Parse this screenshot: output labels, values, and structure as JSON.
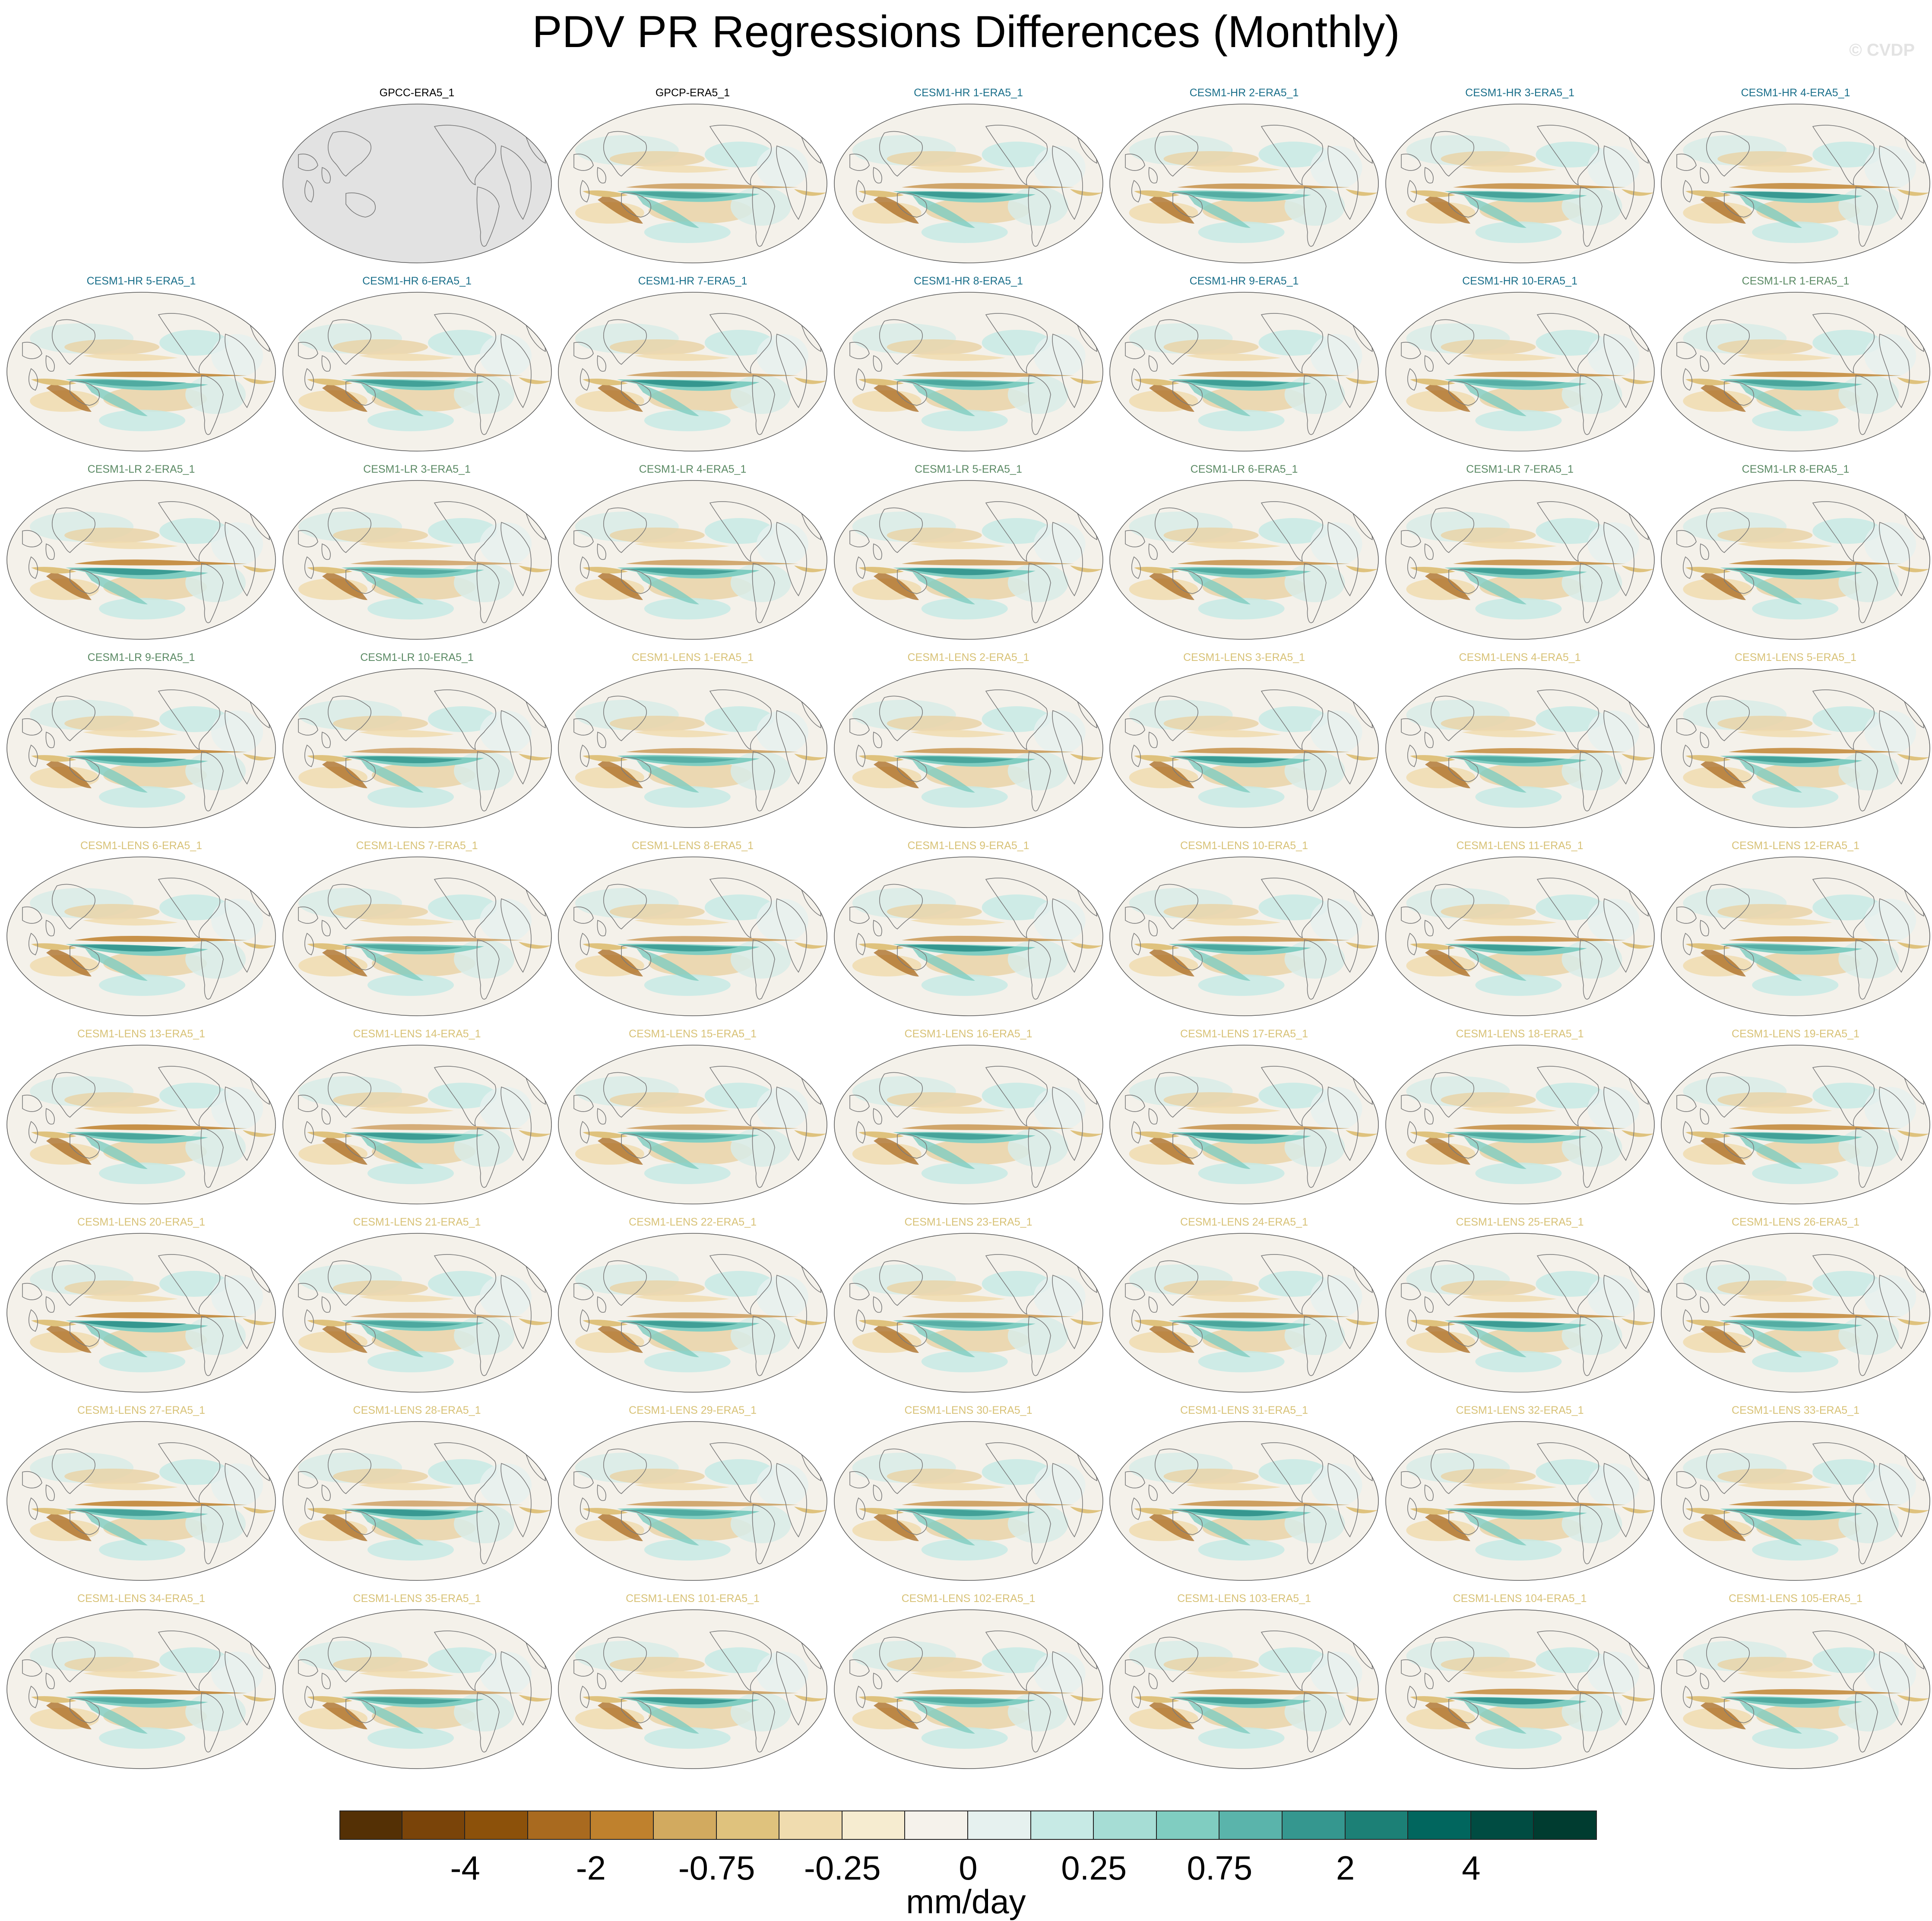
{
  "title": "PDV PR Regressions Differences (Monthly)",
  "watermark": "© CVDP",
  "units": "mm/day",
  "colorbar": {
    "colors": [
      "#543005",
      "#7a4409",
      "#8c510a",
      "#a96a1f",
      "#bf812d",
      "#d2aa5f",
      "#dfc27d",
      "#f0dcaf",
      "#f6ecd0",
      "#f5f2eb",
      "#e6f1ef",
      "#c7eae5",
      "#a6ddd5",
      "#80cdc1",
      "#5ab4ab",
      "#35978f",
      "#1c8076",
      "#01665e",
      "#004c42",
      "#003c30"
    ],
    "tick_labels": [
      "-4",
      "-2",
      "-0.75",
      "-0.25",
      "0",
      "0.25",
      "0.75",
      "2",
      "4"
    ],
    "tick_boundaries": [
      2,
      4,
      6,
      8,
      10,
      12,
      14,
      16,
      18
    ]
  },
  "group_colors": {
    "obs": "#000000",
    "hr": "#1a6f8a",
    "lr": "#5b8a64",
    "lens": "#d8c277"
  },
  "panels": [
    {
      "title": "GPCC-ERA5_1",
      "group": "obs",
      "missing": true
    },
    {
      "title": "GPCP-ERA5_1",
      "group": "obs"
    },
    {
      "title": "CESM1-HR 1-ERA5_1",
      "group": "hr"
    },
    {
      "title": "CESM1-HR 2-ERA5_1",
      "group": "hr"
    },
    {
      "title": "CESM1-HR 3-ERA5_1",
      "group": "hr"
    },
    {
      "title": "CESM1-HR 4-ERA5_1",
      "group": "hr"
    },
    {
      "title": "CESM1-HR 5-ERA5_1",
      "group": "hr"
    },
    {
      "title": "CESM1-HR 6-ERA5_1",
      "group": "hr"
    },
    {
      "title": "CESM1-HR 7-ERA5_1",
      "group": "hr"
    },
    {
      "title": "CESM1-HR 8-ERA5_1",
      "group": "hr"
    },
    {
      "title": "CESM1-HR 9-ERA5_1",
      "group": "hr"
    },
    {
      "title": "CESM1-HR 10-ERA5_1",
      "group": "hr"
    },
    {
      "title": "CESM1-LR 1-ERA5_1",
      "group": "lr"
    },
    {
      "title": "CESM1-LR 2-ERA5_1",
      "group": "lr"
    },
    {
      "title": "CESM1-LR 3-ERA5_1",
      "group": "lr"
    },
    {
      "title": "CESM1-LR 4-ERA5_1",
      "group": "lr"
    },
    {
      "title": "CESM1-LR 5-ERA5_1",
      "group": "lr"
    },
    {
      "title": "CESM1-LR 6-ERA5_1",
      "group": "lr"
    },
    {
      "title": "CESM1-LR 7-ERA5_1",
      "group": "lr"
    },
    {
      "title": "CESM1-LR 8-ERA5_1",
      "group": "lr"
    },
    {
      "title": "CESM1-LR 9-ERA5_1",
      "group": "lr"
    },
    {
      "title": "CESM1-LR 10-ERA5_1",
      "group": "lr"
    },
    {
      "title": "CESM1-LENS 1-ERA5_1",
      "group": "lens"
    },
    {
      "title": "CESM1-LENS 2-ERA5_1",
      "group": "lens"
    },
    {
      "title": "CESM1-LENS 3-ERA5_1",
      "group": "lens"
    },
    {
      "title": "CESM1-LENS 4-ERA5_1",
      "group": "lens"
    },
    {
      "title": "CESM1-LENS 5-ERA5_1",
      "group": "lens"
    },
    {
      "title": "CESM1-LENS 6-ERA5_1",
      "group": "lens"
    },
    {
      "title": "CESM1-LENS 7-ERA5_1",
      "group": "lens"
    },
    {
      "title": "CESM1-LENS 8-ERA5_1",
      "group": "lens"
    },
    {
      "title": "CESM1-LENS 9-ERA5_1",
      "group": "lens"
    },
    {
      "title": "CESM1-LENS 10-ERA5_1",
      "group": "lens"
    },
    {
      "title": "CESM1-LENS 11-ERA5_1",
      "group": "lens"
    },
    {
      "title": "CESM1-LENS 12-ERA5_1",
      "group": "lens"
    },
    {
      "title": "CESM1-LENS 13-ERA5_1",
      "group": "lens"
    },
    {
      "title": "CESM1-LENS 14-ERA5_1",
      "group": "lens"
    },
    {
      "title": "CESM1-LENS 15-ERA5_1",
      "group": "lens"
    },
    {
      "title": "CESM1-LENS 16-ERA5_1",
      "group": "lens"
    },
    {
      "title": "CESM1-LENS 17-ERA5_1",
      "group": "lens"
    },
    {
      "title": "CESM1-LENS 18-ERA5_1",
      "group": "lens"
    },
    {
      "title": "CESM1-LENS 19-ERA5_1",
      "group": "lens"
    },
    {
      "title": "CESM1-LENS 20-ERA5_1",
      "group": "lens"
    },
    {
      "title": "CESM1-LENS 21-ERA5_1",
      "group": "lens"
    },
    {
      "title": "CESM1-LENS 22-ERA5_1",
      "group": "lens"
    },
    {
      "title": "CESM1-LENS 23-ERA5_1",
      "group": "lens"
    },
    {
      "title": "CESM1-LENS 24-ERA5_1",
      "group": "lens"
    },
    {
      "title": "CESM1-LENS 25-ERA5_1",
      "group": "lens"
    },
    {
      "title": "CESM1-LENS 26-ERA5_1",
      "group": "lens"
    },
    {
      "title": "CESM1-LENS 27-ERA5_1",
      "group": "lens"
    },
    {
      "title": "CESM1-LENS 28-ERA5_1",
      "group": "lens"
    },
    {
      "title": "CESM1-LENS 29-ERA5_1",
      "group": "lens"
    },
    {
      "title": "CESM1-LENS 30-ERA5_1",
      "group": "lens"
    },
    {
      "title": "CESM1-LENS 31-ERA5_1",
      "group": "lens"
    },
    {
      "title": "CESM1-LENS 32-ERA5_1",
      "group": "lens"
    },
    {
      "title": "CESM1-LENS 33-ERA5_1",
      "group": "lens"
    },
    {
      "title": "CESM1-LENS 34-ERA5_1",
      "group": "lens"
    },
    {
      "title": "CESM1-LENS 35-ERA5_1",
      "group": "lens"
    },
    {
      "title": "CESM1-LENS 101-ERA5_1",
      "group": "lens"
    },
    {
      "title": "CESM1-LENS 102-ERA5_1",
      "group": "lens"
    },
    {
      "title": "CESM1-LENS 103-ERA5_1",
      "group": "lens"
    },
    {
      "title": "CESM1-LENS 104-ERA5_1",
      "group": "lens"
    },
    {
      "title": "CESM1-LENS 105-ERA5_1",
      "group": "lens"
    }
  ]
}
